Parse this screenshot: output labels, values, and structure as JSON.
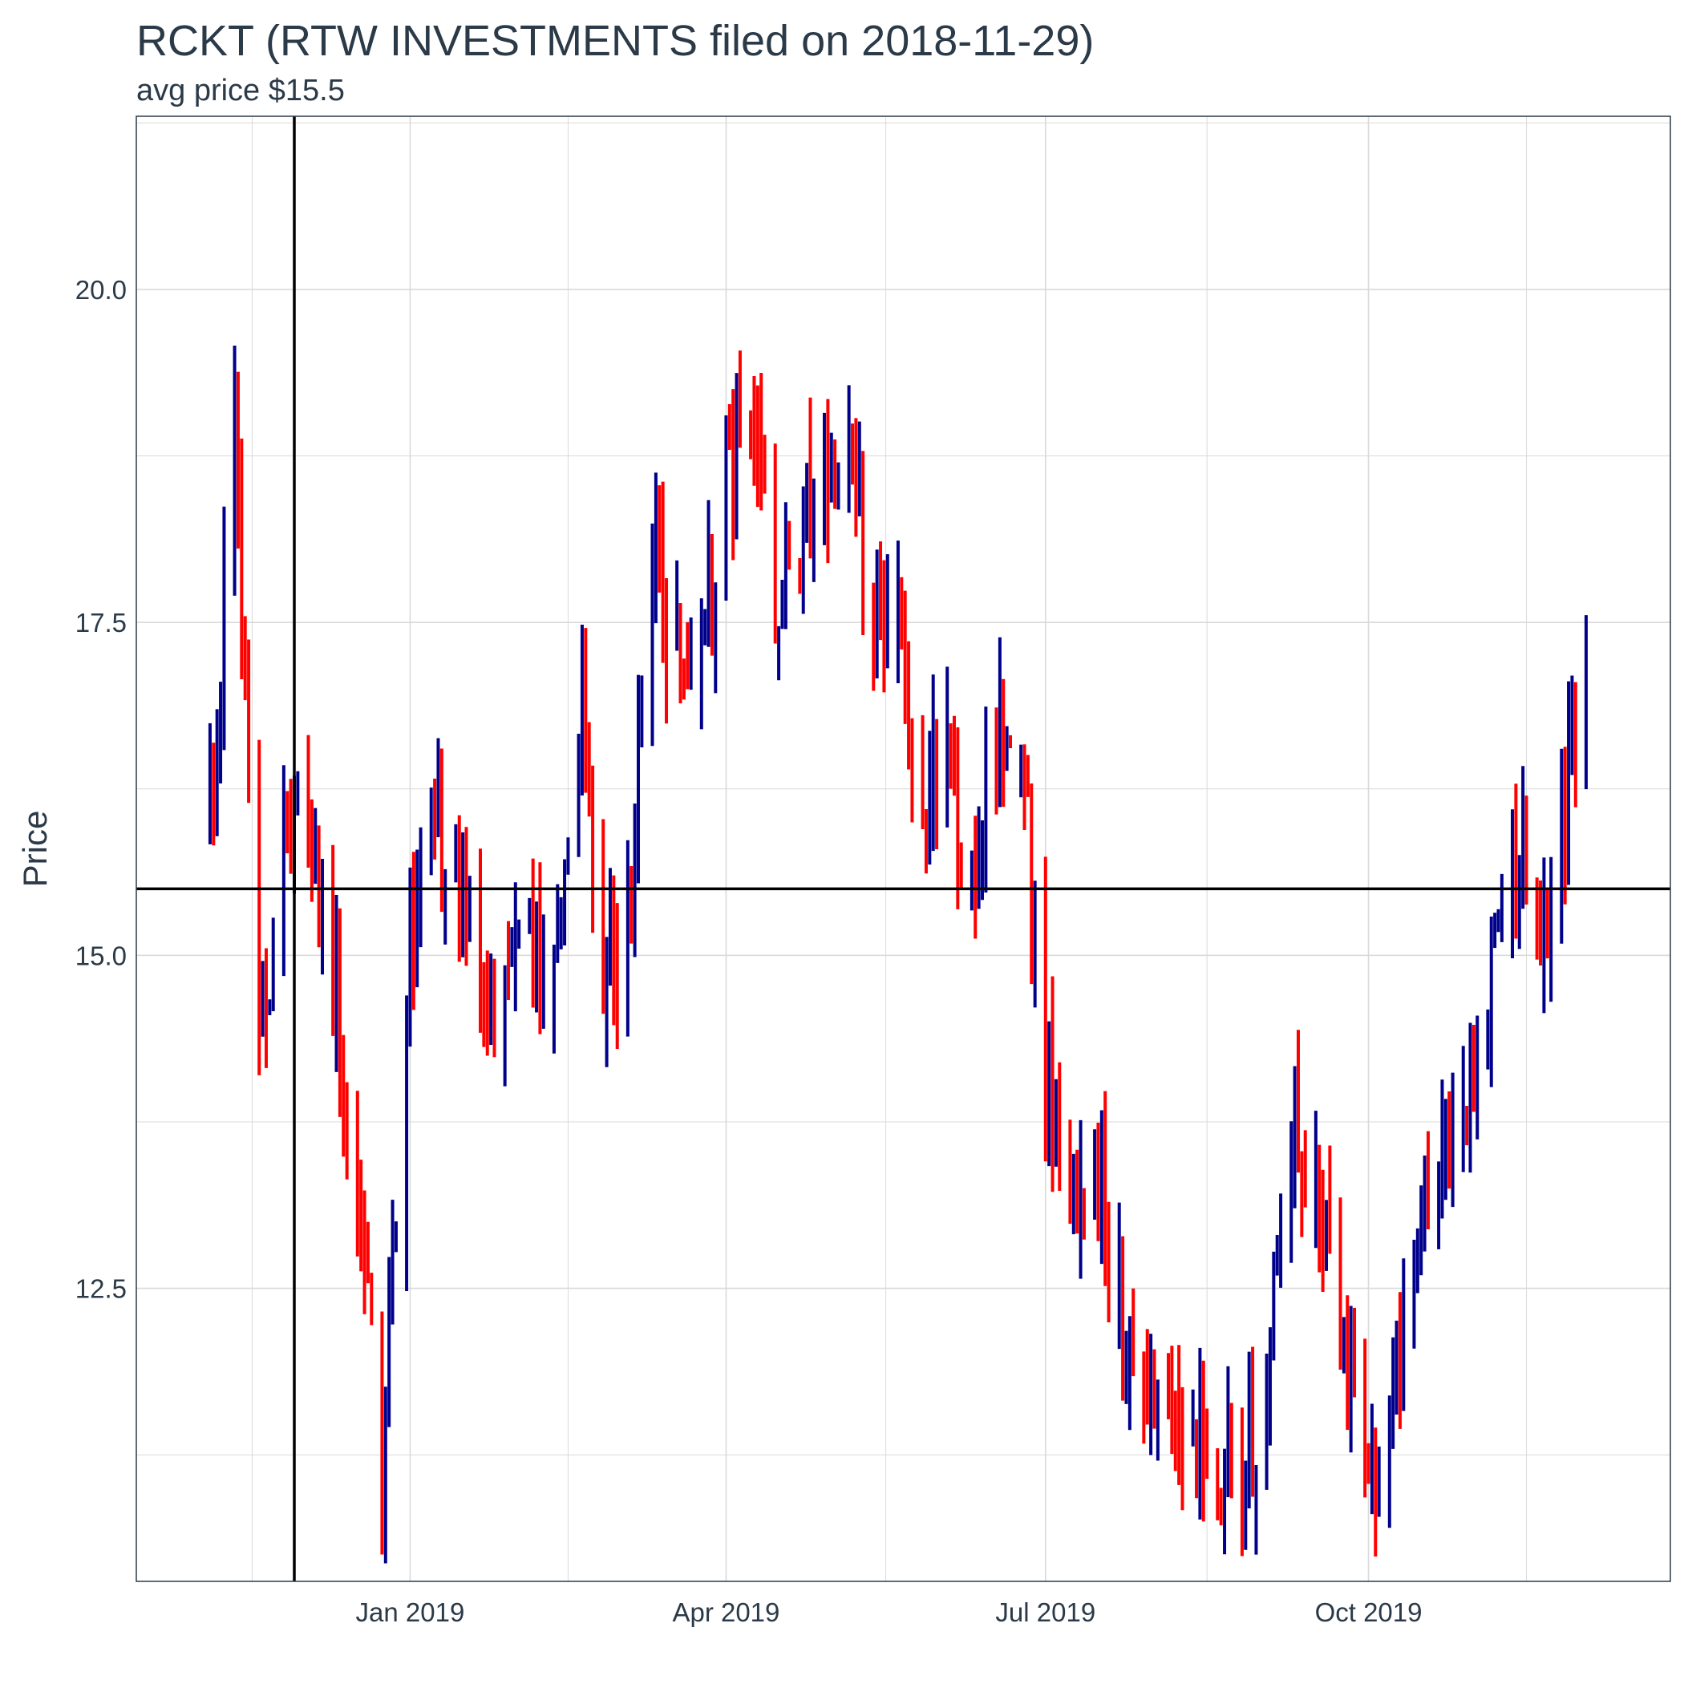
{
  "chart_data": {
    "type": "ohlc",
    "title": "RCKT (RTW INVESTMENTS filed on 2018-11-29)",
    "subtitle": "avg price $15.5",
    "xlabel": "",
    "ylabel": "Price",
    "xlim": [
      "2018-10-15",
      "2019-12-26"
    ],
    "ylim": [
      10.3,
      21.3
    ],
    "x_ticks": [
      {
        "date": "2019-01-01",
        "label": "Jan 2019"
      },
      {
        "date": "2019-04-01",
        "label": "Apr 2019"
      },
      {
        "date": "2019-07-01",
        "label": "Jul 2019"
      },
      {
        "date": "2019-10-01",
        "label": "Oct 2019"
      }
    ],
    "y_ticks": [
      12.5,
      15.0,
      17.5,
      20.0
    ],
    "y_tick_labels": [
      "12.5",
      "15.0",
      "17.5",
      "20.0"
    ],
    "grid": true,
    "filing_date": "2018-11-29",
    "avg_price": 15.5,
    "colors": {
      "up": "#00008b",
      "down": "#ff0000",
      "reference": "#000000",
      "grid": "#d9d9d9",
      "border": "#2b3a48"
    },
    "anchors": [
      [
        "2018-11-05",
        16.2
      ],
      [
        "2018-11-12",
        18.8
      ],
      [
        "2018-11-19",
        14.2
      ],
      [
        "2018-11-26",
        15.8
      ],
      [
        "2018-12-03",
        16.0
      ],
      [
        "2018-12-10",
        14.8
      ],
      [
        "2018-12-17",
        13.2
      ],
      [
        "2018-12-24",
        11.0
      ],
      [
        "2018-12-31",
        15.0
      ],
      [
        "2019-01-07",
        16.0
      ],
      [
        "2019-01-14",
        15.8
      ],
      [
        "2019-01-21",
        14.7
      ],
      [
        "2019-01-28",
        14.5
      ],
      [
        "2019-02-04",
        15.3
      ],
      [
        "2019-02-11",
        14.8
      ],
      [
        "2019-02-18",
        17.0
      ],
      [
        "2019-02-25",
        15.0
      ],
      [
        "2019-03-04",
        15.3
      ],
      [
        "2019-03-11",
        18.0
      ],
      [
        "2019-03-18",
        17.3
      ],
      [
        "2019-03-25",
        17.2
      ],
      [
        "2019-04-01",
        18.7
      ],
      [
        "2019-04-08",
        19.3
      ],
      [
        "2019-04-15",
        17.5
      ],
      [
        "2019-04-22",
        18.2
      ],
      [
        "2019-04-29",
        18.4
      ],
      [
        "2019-05-06",
        18.7
      ],
      [
        "2019-05-13",
        17.6
      ],
      [
        "2019-05-20",
        17.3
      ],
      [
        "2019-05-27",
        16.3
      ],
      [
        "2019-06-03",
        16.6
      ],
      [
        "2019-06-10",
        15.4
      ],
      [
        "2019-06-17",
        16.6
      ],
      [
        "2019-06-24",
        16.5
      ],
      [
        "2019-07-01",
        14.2
      ],
      [
        "2019-07-08",
        13.4
      ],
      [
        "2019-07-15",
        13.2
      ],
      [
        "2019-07-22",
        12.3
      ],
      [
        "2019-07-29",
        12.1
      ],
      [
        "2019-08-05",
        11.3
      ],
      [
        "2019-08-12",
        11.3
      ],
      [
        "2019-08-19",
        11.1
      ],
      [
        "2019-08-26",
        11.1
      ],
      [
        "2019-09-02",
        11.9
      ],
      [
        "2019-09-09",
        14.0
      ],
      [
        "2019-09-16",
        13.2
      ],
      [
        "2019-09-23",
        12.2
      ],
      [
        "2019-09-30",
        11.1
      ],
      [
        "2019-10-07",
        11.5
      ],
      [
        "2019-10-14",
        13.0
      ],
      [
        "2019-10-21",
        13.6
      ],
      [
        "2019-10-28",
        13.6
      ],
      [
        "2019-11-04",
        14.6
      ],
      [
        "2019-11-11",
        15.8
      ],
      [
        "2019-11-18",
        15.2
      ],
      [
        "2019-11-25",
        15.8
      ],
      [
        "2019-12-02",
        17.5
      ]
    ]
  }
}
